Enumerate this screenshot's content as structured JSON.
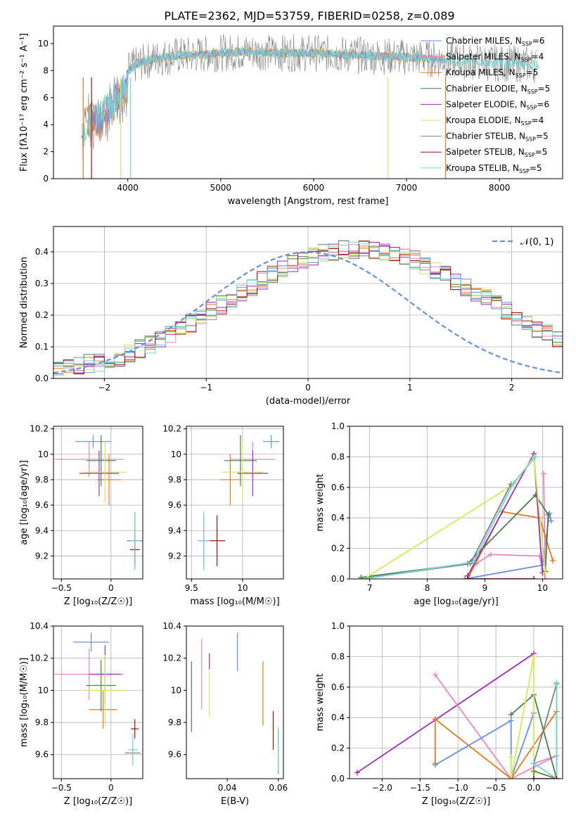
{
  "figure_title": "PLATE=2362, MJD=53759, FIBERID=0258, z=0.089",
  "colors": {
    "cornflower": "#6a8fdc",
    "orange": "#e07b20",
    "darkgreen": "#4e7f4e",
    "purple": "#9a2fb4",
    "yellow": "#d4e85c",
    "gray": "#808080",
    "darkred": "#a01010",
    "cyan": "#78d2d2",
    "pink": "#e887c0",
    "grid": "#b0b0b0"
  },
  "chart_data": [
    {
      "id": "spectrum",
      "type": "line",
      "xlabel": "wavelength [Angstrom, rest frame]",
      "ylabel": "Flux [fλ10⁻¹⁷ erg cm⁻² s⁻¹ A⁻¹]",
      "xlim": [
        3200,
        8680
      ],
      "ylim": [
        0,
        11.3
      ],
      "xticks": [
        4000,
        5000,
        6000,
        7000,
        8000
      ],
      "yticks": [
        0,
        2,
        4,
        6,
        8,
        10
      ],
      "grid": false,
      "legend_position": "top-right",
      "legend": [
        {
          "label": "Chabrier MILES, N",
          "sub": "SSP",
          "suffix": "=6",
          "color": "#6a8fdc"
        },
        {
          "label": "Salpeter MILES, N",
          "sub": "SSP",
          "suffix": "=4",
          "color": "#e887c0"
        },
        {
          "label": "Kroupa MILES, N",
          "sub": "SSP",
          "suffix": "=5",
          "color": "#e07b20"
        },
        {
          "label": "Chabrier ELODIE, N",
          "sub": "SSP",
          "suffix": "=5",
          "color": "#4e7f4e"
        },
        {
          "label": "Salpeter ELODIE, N",
          "sub": "SSP",
          "suffix": "=6",
          "color": "#9a2fb4"
        },
        {
          "label": "Kroupa ELODIE, N",
          "sub": "SSP",
          "suffix": "=4",
          "color": "#d4e85c"
        },
        {
          "label": "Chabrier STELIB, N",
          "sub": "SSP",
          "suffix": "=5",
          "color": "#808080"
        },
        {
          "label": "Salpeter STELIB, N",
          "sub": "SSP",
          "suffix": "=5",
          "color": "#a01010"
        },
        {
          "label": "Kroupa STELIB, N",
          "sub": "SSP",
          "suffix": "=5",
          "color": "#78d2d2"
        }
      ],
      "series_trend": {
        "x": [
          3500,
          3600,
          3700,
          3800,
          3900,
          4000,
          4100,
          4300,
          4500,
          4800,
          5000,
          5300,
          5600,
          6000,
          6300,
          6600,
          7000,
          7400,
          7800,
          8200,
          8400
        ],
        "y": [
          4.6,
          5.8,
          5.3,
          6.6,
          7.2,
          8.0,
          8.5,
          8.9,
          9.1,
          9.2,
          9.3,
          9.4,
          9.3,
          9.3,
          9.2,
          9.1,
          9.0,
          8.8,
          8.6,
          8.5,
          8.4
        ]
      }
    },
    {
      "id": "residuals",
      "type": "bar",
      "xlabel": "(data-model)/error",
      "ylabel": "Normed distribution",
      "xlim": [
        -2.5,
        2.5
      ],
      "ylim": [
        0,
        0.48
      ],
      "xticks": [
        -2,
        -1,
        0,
        1,
        2
      ],
      "yticks": [
        0.0,
        0.1,
        0.2,
        0.3,
        0.4
      ],
      "grid": true,
      "legend_position": "top-right",
      "legend_label": "𝒩(0, 1)",
      "bin_width": 0.1,
      "bin_start": -2.5,
      "series_base": [
        0.028,
        0.032,
        0.04,
        0.046,
        0.052,
        0.058,
        0.068,
        0.08,
        0.093,
        0.108,
        0.124,
        0.14,
        0.158,
        0.176,
        0.194,
        0.213,
        0.232,
        0.251,
        0.27,
        0.289,
        0.308,
        0.326,
        0.343,
        0.359,
        0.373,
        0.385,
        0.395,
        0.402,
        0.407,
        0.409,
        0.409,
        0.407,
        0.402,
        0.395,
        0.385,
        0.373,
        0.359,
        0.343,
        0.326,
        0.308,
        0.289,
        0.27,
        0.251,
        0.232,
        0.213,
        0.194,
        0.176,
        0.158,
        0.14,
        0.124
      ]
    },
    {
      "id": "age_vs_Z",
      "type": "scatter",
      "xlabel": "Z [log₁₀(Z/Z☉)]",
      "ylabel": "age  [log₁₀(age/yr)]",
      "xlim": [
        -0.58,
        0.32
      ],
      "ylim": [
        9.02,
        10.22
      ],
      "xticks": [
        -0.5,
        0.0
      ],
      "yticks": [
        9.2,
        9.4,
        9.6,
        9.8,
        10.0,
        10.2
      ],
      "grid": true,
      "points": [
        {
          "x": -0.18,
          "xerr": 0.18,
          "y": 10.1,
          "yerr": 0.05,
          "color": "#6a8fdc"
        },
        {
          "x": -0.22,
          "xerr": 0.35,
          "y": 9.96,
          "yerr": 0.14,
          "color": "#e887c0"
        },
        {
          "x": -0.02,
          "xerr": 0.12,
          "y": 9.8,
          "yerr": 0.2,
          "color": "#e07b20"
        },
        {
          "x": -0.1,
          "xerr": 0.15,
          "y": 9.95,
          "yerr": 0.2,
          "color": "#4e7f4e"
        },
        {
          "x": -0.12,
          "xerr": 0.2,
          "y": 9.85,
          "yerr": 0.18,
          "color": "#9a2fb4"
        },
        {
          "x": -0.06,
          "xerr": 0.22,
          "y": 9.86,
          "yerr": 0.24,
          "color": "#d4e85c"
        },
        {
          "x": 0.24,
          "xerr": 0.08,
          "y": 9.32,
          "yerr": 0.22,
          "color": "#808080"
        },
        {
          "x": 0.24,
          "xerr": 0.05,
          "y": 9.25,
          "yerr": 0.12,
          "color": "#a01010"
        },
        {
          "x": 0.24,
          "xerr": 0.05,
          "y": 9.32,
          "yerr": 0.23,
          "color": "#78d2d2"
        }
      ]
    },
    {
      "id": "age_vs_mass",
      "type": "scatter",
      "xlabel": "mass [log₁₀(M/M☉)]",
      "ylabel": "",
      "xlim": [
        9.45,
        10.4
      ],
      "ylim": [
        9.02,
        10.22
      ],
      "xticks": [
        9.5,
        10.0
      ],
      "yticks": [
        9.2,
        9.4,
        9.6,
        9.8,
        10.0,
        10.2
      ],
      "grid": true,
      "points": [
        {
          "x": 10.28,
          "xerr": 0.08,
          "y": 10.1,
          "yerr": 0.05,
          "color": "#6a8fdc"
        },
        {
          "x": 10.1,
          "xerr": 0.22,
          "y": 9.96,
          "yerr": 0.14,
          "color": "#e887c0"
        },
        {
          "x": 9.88,
          "xerr": 0.1,
          "y": 9.8,
          "yerr": 0.2,
          "color": "#e07b20"
        },
        {
          "x": 9.98,
          "xerr": 0.16,
          "y": 9.95,
          "yerr": 0.2,
          "color": "#4e7f4e"
        },
        {
          "x": 10.1,
          "xerr": 0.15,
          "y": 9.85,
          "yerr": 0.18,
          "color": "#9a2fb4"
        },
        {
          "x": 10.0,
          "xerr": 0.2,
          "y": 9.86,
          "yerr": 0.24,
          "color": "#d4e85c"
        },
        {
          "x": 9.62,
          "xerr": 0.06,
          "y": 9.32,
          "yerr": 0.2,
          "color": "#808080"
        },
        {
          "x": 9.75,
          "xerr": 0.08,
          "y": 9.32,
          "yerr": 0.2,
          "color": "#a01010"
        },
        {
          "x": 9.62,
          "xerr": 0.06,
          "y": 9.32,
          "yerr": 0.23,
          "color": "#78d2d2"
        }
      ]
    },
    {
      "id": "weight_vs_age",
      "type": "line",
      "xlabel": "age  [log₁₀(age/yr)]",
      "ylabel": "mass weight",
      "xlim": [
        6.65,
        10.35
      ],
      "ylim": [
        0,
        1.0
      ],
      "xticks": [
        7,
        8,
        9,
        10
      ],
      "yticks": [
        0.0,
        0.2,
        0.4,
        0.6,
        0.8,
        1.0
      ],
      "grid": true,
      "series": [
        {
          "color": "#6a8fdc",
          "x": [
            8.65,
            10.0,
            10.12,
            10.15
          ],
          "y": [
            0.0,
            0.09,
            0.43,
            0.38
          ]
        },
        {
          "color": "#e887c0",
          "x": [
            8.85,
            9.1,
            9.95,
            10.05,
            10.02
          ],
          "y": [
            0.1,
            0.16,
            0.15,
            0.0,
            0.69
          ]
        },
        {
          "color": "#e07b20",
          "x": [
            8.7,
            9.3,
            9.95,
            10.18
          ],
          "y": [
            0.0,
            0.44,
            0.4,
            0.12
          ]
        },
        {
          "color": "#4e7f4e",
          "x": [
            6.85,
            8.7,
            9.88,
            10.1,
            10.05
          ],
          "y": [
            0.01,
            0.1,
            0.55,
            0.42,
            0.05
          ]
        },
        {
          "color": "#9a2fb4",
          "x": [
            8.7,
            9.85,
            10.0
          ],
          "y": [
            0.02,
            0.82,
            0.04
          ]
        },
        {
          "color": "#d4e85c",
          "x": [
            6.9,
            9.5,
            9.85,
            10.05
          ],
          "y": [
            0.0,
            0.62,
            0.8,
            0.04
          ]
        },
        {
          "color": "#808080",
          "x": [
            6.85,
            8.75,
            9.45
          ],
          "y": [
            0.0,
            0.1,
            0.62
          ]
        },
        {
          "color": "#a01010",
          "x": [
            8.7,
            9.85
          ],
          "y": [
            0.0,
            0.0
          ]
        },
        {
          "color": "#78d2d2",
          "x": [
            6.9,
            8.8,
            9.5,
            9.88
          ],
          "y": [
            0.0,
            0.11,
            0.63,
            0.8
          ]
        }
      ]
    },
    {
      "id": "mass_vs_Z",
      "type": "scatter",
      "xlabel": "Z [log₁₀(Z/Z☉)]",
      "ylabel": "mass [log₁₀(M/M☉)]",
      "xlim": [
        -0.58,
        0.32
      ],
      "ylim": [
        9.45,
        10.4
      ],
      "xticks": [
        -0.5,
        0.0
      ],
      "yticks": [
        9.6,
        9.8,
        10.0,
        10.2,
        10.4
      ],
      "grid": true,
      "points": [
        {
          "x": -0.2,
          "xerr": 0.18,
          "y": 10.3,
          "yerr": 0.06,
          "color": "#6a8fdc"
        },
        {
          "x": -0.22,
          "xerr": 0.35,
          "y": 10.1,
          "yerr": 0.16,
          "color": "#e887c0"
        },
        {
          "x": -0.08,
          "xerr": 0.14,
          "y": 9.88,
          "yerr": 0.12,
          "color": "#e07b20"
        },
        {
          "x": -0.1,
          "xerr": 0.15,
          "y": 10.03,
          "yerr": 0.16,
          "color": "#4e7f4e"
        },
        {
          "x": -0.06,
          "xerr": 0.16,
          "y": 10.1,
          "yerr": 0.18,
          "color": "#9a2fb4"
        },
        {
          "x": -0.06,
          "xerr": 0.2,
          "y": 10.0,
          "yerr": 0.22,
          "color": "#d4e85c"
        },
        {
          "x": 0.22,
          "xerr": 0.08,
          "y": 9.61,
          "yerr": 0.06,
          "color": "#808080"
        },
        {
          "x": 0.24,
          "xerr": 0.04,
          "y": 9.76,
          "yerr": 0.06,
          "color": "#a01010"
        },
        {
          "x": 0.22,
          "xerr": 0.05,
          "y": 9.63,
          "yerr": 0.1,
          "color": "#78d2d2"
        }
      ]
    },
    {
      "id": "mass_vs_ebv",
      "type": "scatter",
      "xlabel": "E(B-V)",
      "ylabel": "",
      "xlim": [
        0.024,
        0.062
      ],
      "ylim": [
        9.45,
        10.4
      ],
      "xticks": [
        0.04,
        0.06
      ],
      "yticks": [
        9.6,
        9.8,
        10.0,
        10.2,
        10.4
      ],
      "grid": false,
      "points": [
        {
          "x": 0.044,
          "xerr": 0,
          "y": 10.24,
          "yerr": 0.12,
          "color": "#6a8fdc"
        },
        {
          "x": 0.03,
          "xerr": 0,
          "y": 10.1,
          "yerr": 0.22,
          "color": "#e887c0"
        },
        {
          "x": 0.054,
          "xerr": 0,
          "y": 9.98,
          "yerr": 0.2,
          "color": "#e07b20"
        },
        {
          "x": 0.026,
          "xerr": 0,
          "y": 9.96,
          "yerr": 0.22,
          "color": "#4e7f4e"
        },
        {
          "x": 0.033,
          "xerr": 0,
          "y": 10.18,
          "yerr": 0.05,
          "color": "#9a2fb4"
        },
        {
          "x": 0.033,
          "xerr": 0,
          "y": 9.98,
          "yerr": 0.14,
          "color": "#d4e85c"
        },
        {
          "x": 0.06,
          "xerr": 0,
          "y": 9.62,
          "yerr": 0.14,
          "color": "#808080"
        },
        {
          "x": 0.058,
          "xerr": 0,
          "y": 9.75,
          "yerr": 0.12,
          "color": "#a01010"
        },
        {
          "x": 0.06,
          "xerr": 0,
          "y": 9.63,
          "yerr": 0.14,
          "color": "#78d2d2"
        }
      ]
    },
    {
      "id": "weight_vs_Z",
      "type": "line",
      "xlabel": "Z [log₁₀(Z/Z☉)]",
      "ylabel": "mass weight",
      "xlim": [
        -2.43,
        0.38
      ],
      "ylim": [
        0,
        1.0
      ],
      "xticks": [
        -2.0,
        -1.5,
        -1.0,
        -0.5,
        0.0
      ],
      "yticks": [
        0.0,
        0.2,
        0.4,
        0.6,
        0.8,
        1.0
      ],
      "grid": true,
      "series": [
        {
          "color": "#9a2fb4",
          "x": [
            -2.33,
            0.0
          ],
          "y": [
            0.04,
            0.82
          ]
        },
        {
          "color": "#e887c0",
          "x": [
            -1.3,
            -0.3,
            0.3,
            0.0
          ],
          "y": [
            0.68,
            0.0,
            0.15,
            0.1
          ]
        },
        {
          "color": "#e07b20",
          "x": [
            -1.3,
            -1.3,
            -0.3,
            0.3,
            0.3
          ],
          "y": [
            0.1,
            0.39,
            0.0,
            0.44,
            0.0
          ]
        },
        {
          "color": "#6a8fdc",
          "x": [
            -1.3,
            -0.3,
            -0.3,
            0.0
          ],
          "y": [
            0.09,
            0.38,
            0.0,
            0.43
          ]
        },
        {
          "color": "#4e7f4e",
          "x": [
            -0.3,
            0.0,
            0.3,
            0.0
          ],
          "y": [
            0.42,
            0.55,
            0.0,
            0.05
          ]
        },
        {
          "color": "#d4e85c",
          "x": [
            -0.3,
            -0.3,
            0.0,
            0.0
          ],
          "y": [
            0.14,
            0.0,
            0.8,
            0.04
          ]
        },
        {
          "color": "#808080",
          "x": [
            0.0,
            0.0,
            0.3,
            0.3
          ],
          "y": [
            0.0,
            0.1,
            0.62,
            0.0
          ]
        },
        {
          "color": "#78d2d2",
          "x": [
            0.3,
            0.3,
            0.0
          ],
          "y": [
            0.63,
            0.0,
            0.1
          ]
        },
        {
          "color": "#a01010",
          "x": [
            0.0,
            0.3
          ],
          "y": [
            0.0,
            0.0
          ]
        }
      ]
    }
  ]
}
